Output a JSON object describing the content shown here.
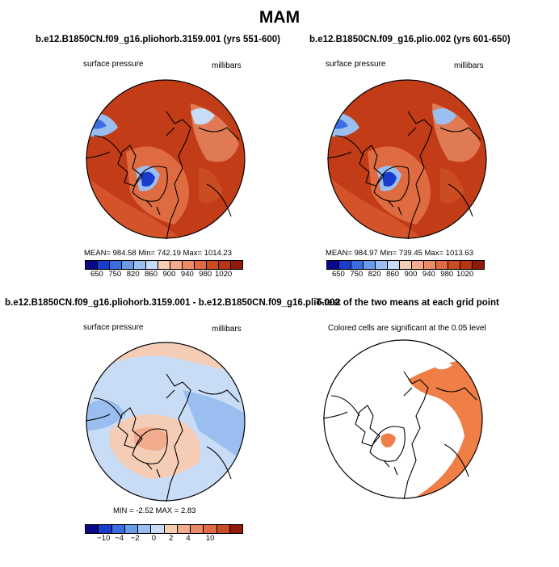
{
  "figure": {
    "title": "MAM"
  },
  "panels": [
    {
      "title": "b.e12.B1850CN.f09_g16.pliohorb.3159.001 (yrs 551-600)",
      "left_label": "surface pressure",
      "right_label": "millibars",
      "stats": "MEAN= 984.58   Min= 742.19   Max= 1014.23",
      "colorbar_labels": [
        "650",
        "750",
        "820",
        "860",
        "900",
        "940",
        "980",
        "1020"
      ]
    },
    {
      "title": "b.e12.B1850CN.f09_g16.plio.002 (yrs 601-650)",
      "left_label": "surface pressure",
      "right_label": "millibars",
      "stats": "MEAN= 984.97   Min= 739.45   Max= 1013.63",
      "colorbar_labels": [
        "650",
        "750",
        "820",
        "860",
        "900",
        "940",
        "980",
        "1020"
      ]
    },
    {
      "title": "b.e12.B1850CN.f09_g16.pliohorb.3159.001 - b.e12.B1850CN.f09_g16.plio.002",
      "left_label": "surface pressure",
      "right_label": "millibars",
      "stats": "MIN =   -2.52  MAX =    2.83",
      "colorbar_labels": [
        "-10",
        "-4",
        "-2",
        "0",
        "2",
        "4",
        "10"
      ]
    },
    {
      "title": "T-test of the two means at each grid point",
      "subtitle": "Colored cells are significant at the 0.05 level"
    }
  ],
  "colors": {
    "abs_colorbar": [
      "#08088a",
      "#1a3ccc",
      "#3a6ee0",
      "#6a9ae8",
      "#9bbef0",
      "#c9dcf5",
      "#f5cdb6",
      "#f2ab8c",
      "#eb8a66",
      "#e06a43",
      "#cc4c22",
      "#b83514",
      "#8f1a08"
    ],
    "diff_colorbar": [
      "#08088a",
      "#1a3ccc",
      "#3a6ee0",
      "#6a9ae8",
      "#9bbef0",
      "#c9dcf5",
      "#f5cdb6",
      "#f2ab8c",
      "#eb8a66",
      "#e06a43",
      "#cc4c22",
      "#8f1a08"
    ],
    "dominant_high": "#c23c17",
    "significant": "#ef7e47"
  }
}
